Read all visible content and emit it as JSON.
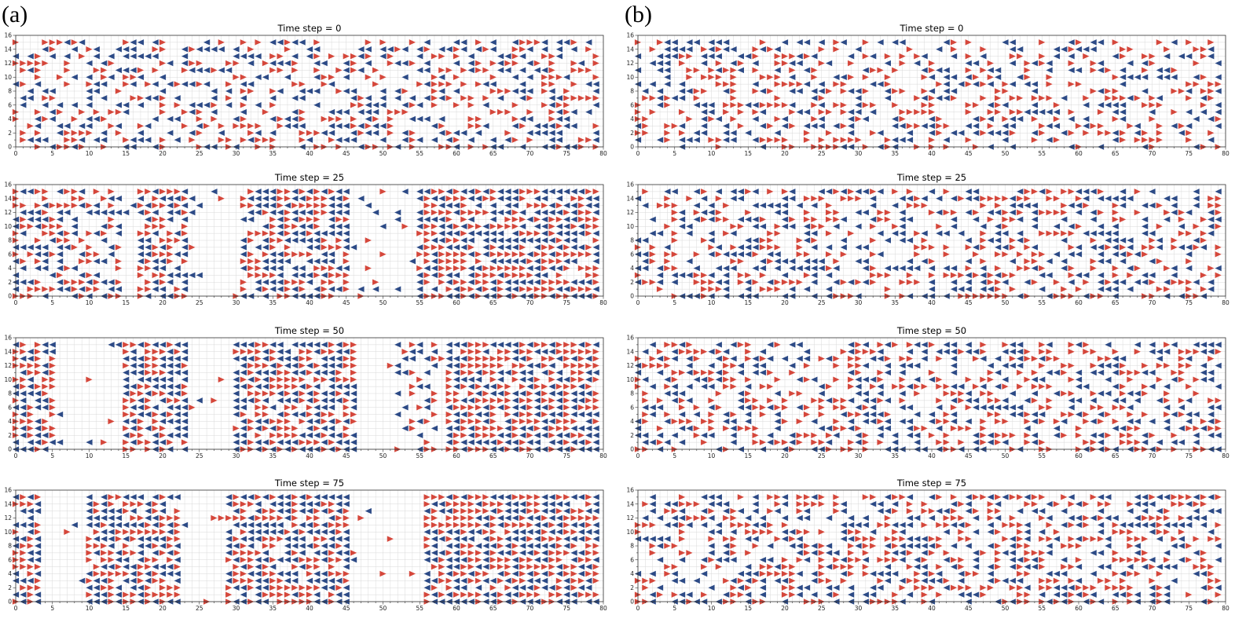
{
  "panel_labels": [
    "(a)",
    "(b)"
  ],
  "colors": {
    "right": "#d5473b",
    "left": "#2c4a86",
    "grid": "#d9d9d9"
  },
  "chart_data": [
    {
      "type": "scatter",
      "panel": "(a)",
      "subplots": [
        {
          "title": "Time step = 0",
          "xlim": [
            0,
            80
          ],
          "ylim": [
            0,
            16
          ],
          "xticks": [
            0,
            5,
            10,
            15,
            20,
            25,
            30,
            35,
            40,
            45,
            50,
            55,
            60,
            65,
            70,
            75,
            80
          ],
          "yticks": [
            0,
            2,
            4,
            6,
            8,
            10,
            12,
            14,
            16
          ],
          "grid": true,
          "density": 0.5,
          "clusters": null,
          "series": [
            {
              "marker": "triangle-right",
              "color": "#d5473b"
            },
            {
              "marker": "triangle-left",
              "color": "#2c4a86"
            }
          ]
        },
        {
          "title": "Time step = 25",
          "xlim": [
            0,
            80
          ],
          "ylim": [
            0,
            16
          ],
          "xticks": [
            0,
            5,
            10,
            15,
            20,
            25,
            30,
            35,
            40,
            45,
            50,
            55,
            60,
            65,
            70,
            75,
            80
          ],
          "yticks": [
            0,
            2,
            4,
            6,
            8,
            10,
            12,
            14,
            16
          ],
          "grid": true,
          "density": 0.12,
          "clusters": [
            [
              0,
              7,
              0.7
            ],
            [
              8,
              14,
              0.55
            ],
            [
              17,
              23,
              0.85
            ],
            [
              31,
              45,
              0.85
            ],
            [
              55,
              80,
              0.9
            ]
          ]
        },
        {
          "title": "Time step = 50",
          "xlim": [
            0,
            80
          ],
          "ylim": [
            0,
            16
          ],
          "xticks": [
            0,
            5,
            10,
            15,
            20,
            25,
            30,
            35,
            40,
            45,
            50,
            55,
            60,
            65,
            70,
            75,
            80
          ],
          "yticks": [
            0,
            2,
            4,
            6,
            8,
            10,
            12,
            14,
            16
          ],
          "grid": true,
          "density": 0.05,
          "clusters": [
            [
              0,
              5,
              0.85
            ],
            [
              15,
              23,
              0.9
            ],
            [
              30,
              46,
              0.92
            ],
            [
              52,
              57,
              0.45
            ],
            [
              59,
              80,
              0.95
            ]
          ]
        },
        {
          "title": "Time step = 75",
          "xlim": [
            0,
            80
          ],
          "ylim": [
            0,
            16
          ],
          "xticks": [
            0,
            5,
            10,
            15,
            20,
            25,
            30,
            35,
            40,
            45,
            50,
            55,
            60,
            65,
            70,
            75,
            80
          ],
          "yticks": [
            0,
            2,
            4,
            6,
            8,
            10,
            12,
            14,
            16
          ],
          "grid": true,
          "density": 0.05,
          "clusters": [
            [
              0,
              3,
              0.9
            ],
            [
              10,
              22,
              0.9
            ],
            [
              29,
              45,
              0.92
            ],
            [
              56,
              80,
              0.95
            ]
          ]
        }
      ]
    },
    {
      "type": "scatter",
      "panel": "(b)",
      "subplots": [
        {
          "title": "Time step = 0",
          "xlim": [
            0,
            80
          ],
          "ylim": [
            0,
            16
          ],
          "xticks": [
            0,
            5,
            10,
            15,
            20,
            25,
            30,
            35,
            40,
            45,
            50,
            55,
            60,
            65,
            70,
            75,
            80
          ],
          "yticks": [
            0,
            2,
            4,
            6,
            8,
            10,
            12,
            14,
            16
          ],
          "grid": true,
          "density": 0.5,
          "clusters": null
        },
        {
          "title": "Time step = 25",
          "xlim": [
            0,
            80
          ],
          "ylim": [
            0,
            16
          ],
          "xticks": [
            0,
            5,
            10,
            15,
            20,
            25,
            30,
            35,
            40,
            45,
            50,
            55,
            60,
            65,
            70,
            75,
            80
          ],
          "yticks": [
            0,
            2,
            4,
            6,
            8,
            10,
            12,
            14,
            16
          ],
          "grid": true,
          "density": 0.55,
          "clusters": null
        },
        {
          "title": "Time step = 50",
          "xlim": [
            0,
            80
          ],
          "ylim": [
            0,
            16
          ],
          "xticks": [
            0,
            5,
            10,
            15,
            20,
            25,
            30,
            35,
            40,
            45,
            50,
            55,
            60,
            65,
            70,
            75,
            80
          ],
          "yticks": [
            0,
            2,
            4,
            6,
            8,
            10,
            12,
            14,
            16
          ],
          "grid": true,
          "density": 0.55,
          "clusters": null
        },
        {
          "title": "Time step = 75",
          "xlim": [
            0,
            80
          ],
          "ylim": [
            0,
            16
          ],
          "xticks": [
            0,
            5,
            10,
            15,
            20,
            25,
            30,
            35,
            40,
            45,
            50,
            55,
            60,
            65,
            70,
            75,
            80
          ],
          "yticks": [
            0,
            2,
            4,
            6,
            8,
            10,
            12,
            14,
            16
          ],
          "grid": true,
          "density": 0.55,
          "clusters": null
        }
      ]
    }
  ]
}
